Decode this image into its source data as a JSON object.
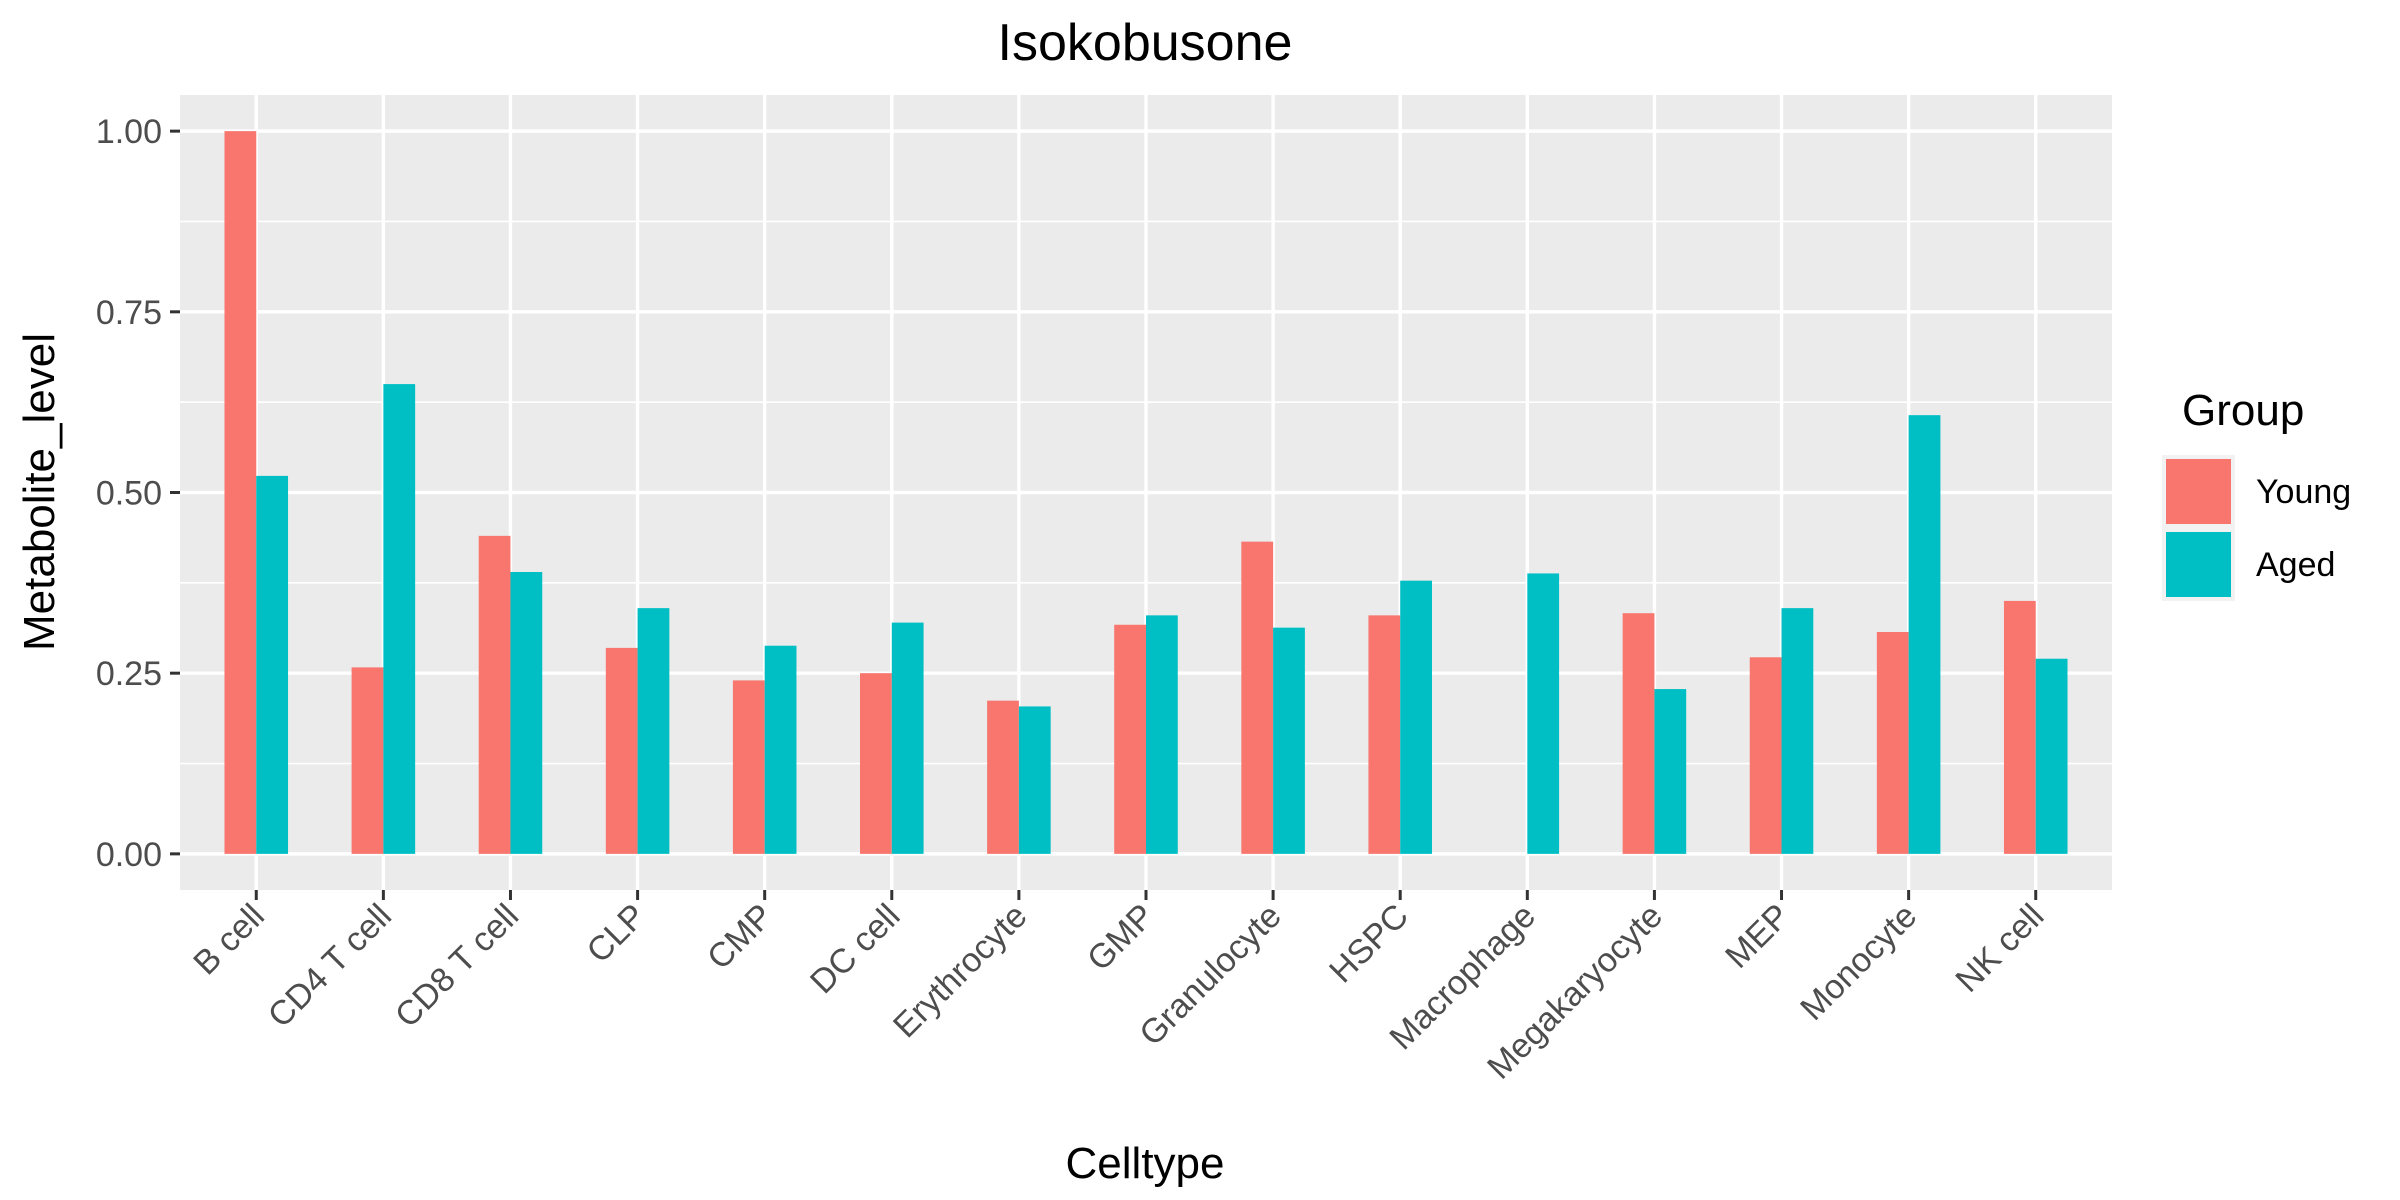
{
  "chart_data": {
    "type": "bar",
    "title": "Isokobusone",
    "xlabel": "Celltype",
    "ylabel": "Metabolite_level",
    "ylim": [
      -0.05,
      1.05
    ],
    "yticks": [
      0.0,
      0.25,
      0.5,
      0.75,
      1.0
    ],
    "ytick_labels": [
      "0.00",
      "0.25",
      "0.50",
      "0.75",
      "1.00"
    ],
    "grid": true,
    "legend": {
      "title": "Group",
      "placement": "right"
    },
    "categories": [
      "B cell",
      "CD4 T cell",
      "CD8 T cell",
      "CLP",
      "CMP",
      "DC cell",
      "Erythrocyte",
      "GMP",
      "Granulocyte",
      "HSPC",
      "Macrophage",
      "Megakaryocyte",
      "MEP",
      "Monocyte",
      "NK cell"
    ],
    "series": [
      {
        "name": "Young",
        "color": "#F8766D",
        "values": [
          1.0,
          0.258,
          0.44,
          0.285,
          0.24,
          0.25,
          0.212,
          0.317,
          0.432,
          0.33,
          null,
          0.333,
          0.272,
          0.307,
          0.35
        ]
      },
      {
        "name": "Aged",
        "color": "#00BFC4",
        "values": [
          0.523,
          0.65,
          0.39,
          0.34,
          0.288,
          0.32,
          0.204,
          0.33,
          0.313,
          0.378,
          0.388,
          0.228,
          0.34,
          0.607,
          0.27
        ]
      }
    ]
  }
}
